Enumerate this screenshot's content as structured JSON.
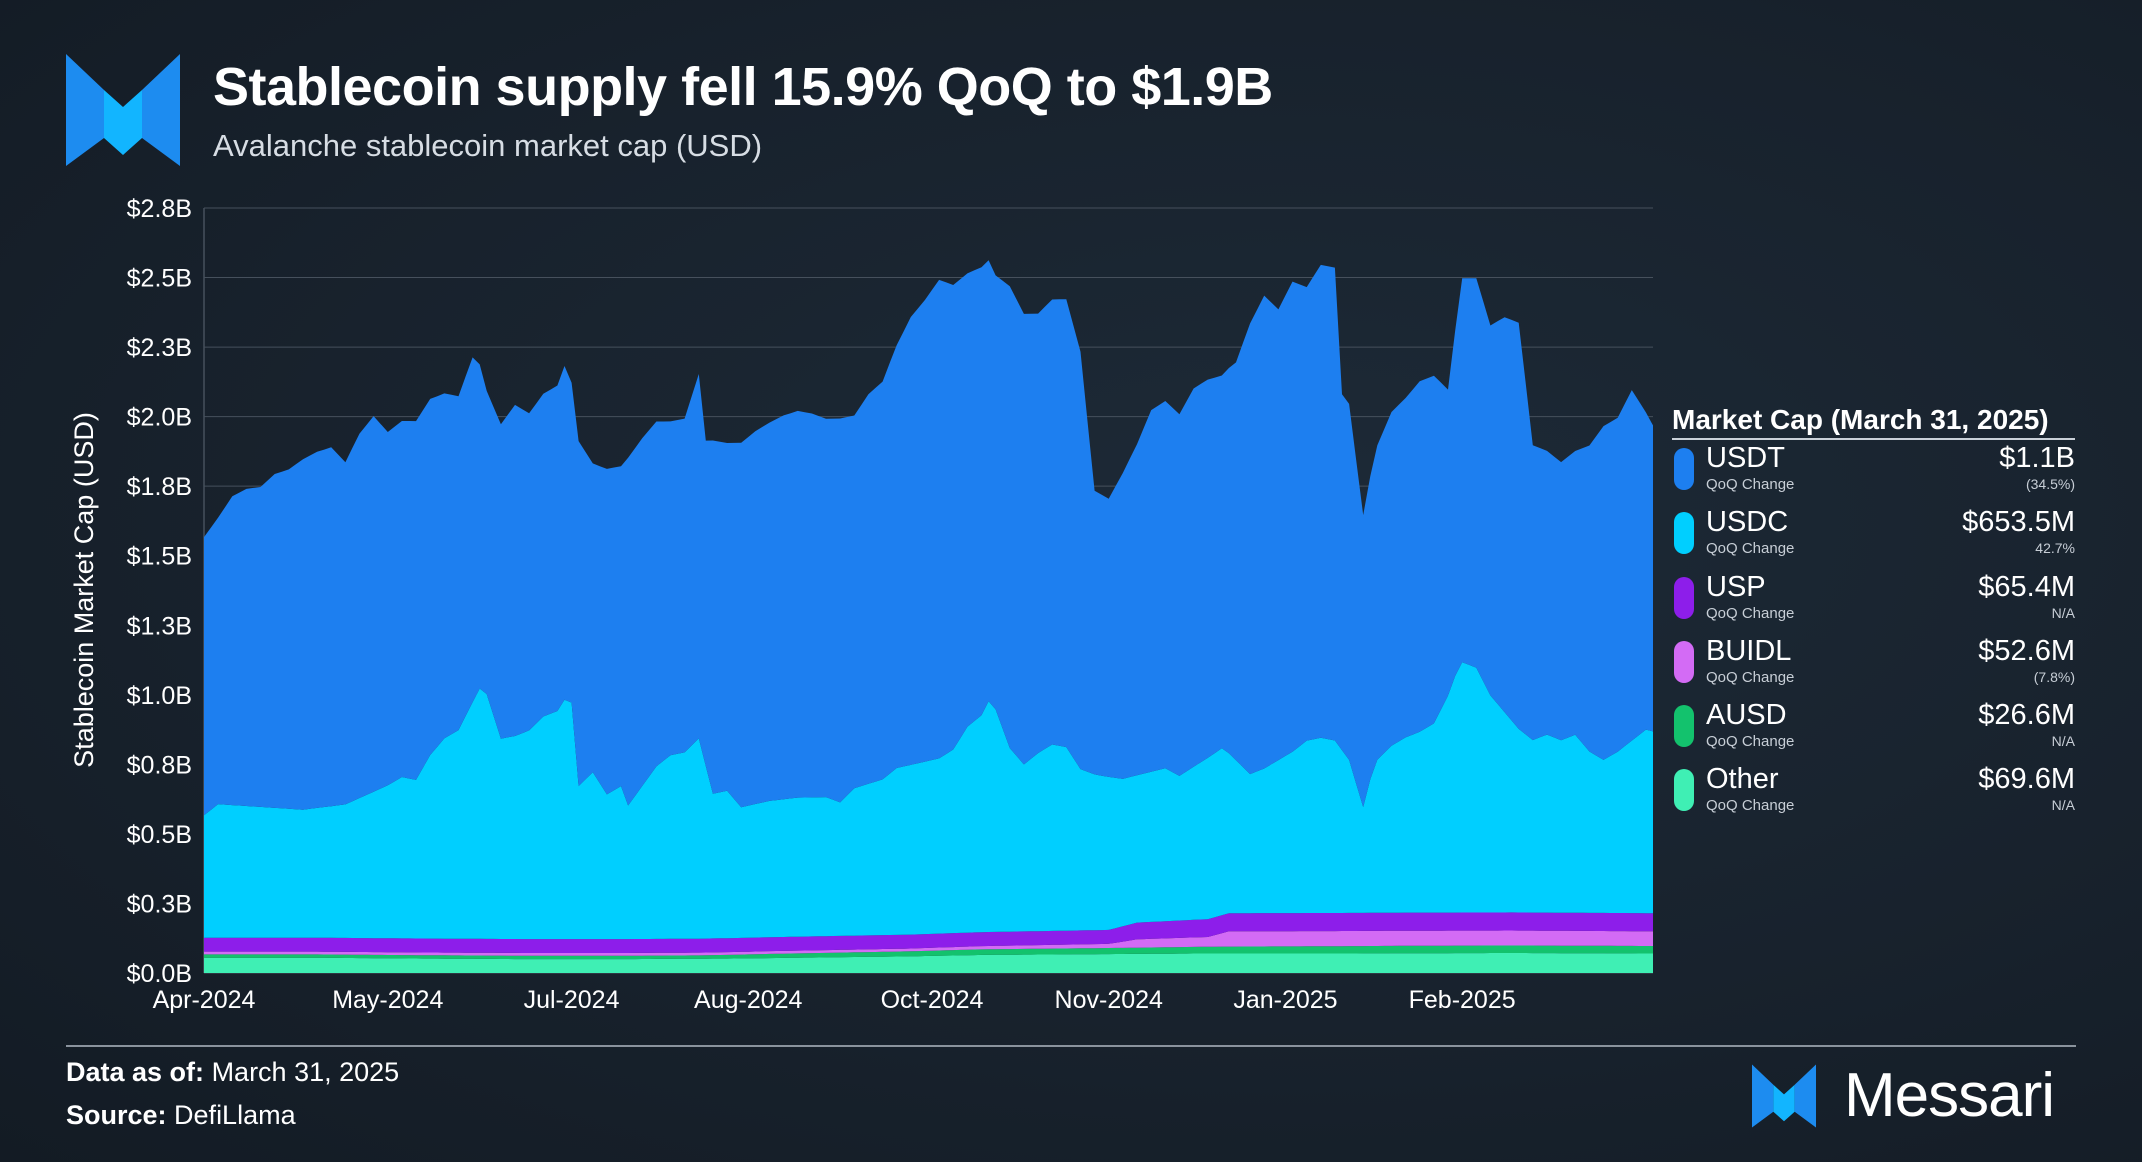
{
  "header": {
    "title": "Stablecoin supply fell 15.9% QoQ to $1.9B",
    "subtitle": "Avalanche stablecoin market cap (USD)"
  },
  "chart_data": {
    "type": "area",
    "stacked": true,
    "title": "Stablecoin supply fell 15.9% QoQ to $1.9B",
    "subtitle": "Avalanche stablecoin market cap (USD)",
    "xlabel": "",
    "ylabel": "Stablecoin Market Cap (USD)",
    "ylim": [
      0,
      2.75
    ],
    "yticks": [
      0,
      0.25,
      0.5,
      0.75,
      1.0,
      1.25,
      1.5,
      1.75,
      2.0,
      2.25,
      2.5,
      2.75
    ],
    "ytick_labels": [
      "$0.0B",
      "$0.3B",
      "$0.5B",
      "$0.8B",
      "$1.0B",
      "$1.3B",
      "$1.5B",
      "$1.8B",
      "$2.0B",
      "$2.3B",
      "$2.5B",
      "$2.8B"
    ],
    "x_tick_labels": [
      "Apr-2024",
      "May-2024",
      "Jul-2024",
      "Aug-2024",
      "Oct-2024",
      "Nov-2024",
      "Jan-2025",
      "Feb-2025"
    ],
    "x_tick_positions": [
      0,
      26,
      52,
      77,
      103,
      128,
      153,
      178
    ],
    "x_count": 206,
    "grid": true,
    "series": [
      {
        "name": "Other",
        "color": "#3fefb4",
        "values": [
          [
            0,
            0.055
          ],
          [
            15,
            0.055
          ],
          [
            30,
            0.052
          ],
          [
            45,
            0.05
          ],
          [
            60,
            0.05
          ],
          [
            75,
            0.052
          ],
          [
            100,
            0.06
          ],
          [
            110,
            0.065
          ],
          [
            140,
            0.07
          ],
          [
            160,
            0.07
          ],
          [
            185,
            0.072
          ],
          [
            205,
            0.07
          ]
        ]
      },
      {
        "name": "AUSD",
        "color": "#13c26d",
        "values": [
          [
            0,
            0.012
          ],
          [
            60,
            0.012
          ],
          [
            70,
            0.012
          ],
          [
            80,
            0.015
          ],
          [
            100,
            0.018
          ],
          [
            110,
            0.02
          ],
          [
            130,
            0.022
          ],
          [
            145,
            0.025
          ],
          [
            170,
            0.027
          ],
          [
            205,
            0.027
          ]
        ]
      },
      {
        "name": "BUIDL",
        "color": "#d36bf5",
        "values": [
          [
            0,
            0.01
          ],
          [
            100,
            0.01
          ],
          [
            128,
            0.015
          ],
          [
            132,
            0.03
          ],
          [
            142,
            0.035
          ],
          [
            145,
            0.055
          ],
          [
            205,
            0.053
          ]
        ]
      },
      {
        "name": "USP",
        "color": "#8d1eea",
        "values": [
          [
            0,
            0.05
          ],
          [
            100,
            0.05
          ],
          [
            128,
            0.05
          ],
          [
            132,
            0.06
          ],
          [
            145,
            0.065
          ],
          [
            205,
            0.065
          ]
        ]
      },
      {
        "name": "USDC",
        "color": "#00cfff",
        "values": [
          [
            0,
            0.44
          ],
          [
            2,
            0.48
          ],
          [
            8,
            0.47
          ],
          [
            14,
            0.46
          ],
          [
            20,
            0.48
          ],
          [
            26,
            0.55
          ],
          [
            28,
            0.58
          ],
          [
            30,
            0.57
          ],
          [
            32,
            0.66
          ],
          [
            34,
            0.72
          ],
          [
            36,
            0.75
          ],
          [
            38,
            0.85
          ],
          [
            39,
            0.9
          ],
          [
            40,
            0.88
          ],
          [
            42,
            0.72
          ],
          [
            44,
            0.73
          ],
          [
            46,
            0.75
          ],
          [
            48,
            0.8
          ],
          [
            50,
            0.82
          ],
          [
            51,
            0.86
          ],
          [
            52,
            0.85
          ],
          [
            53,
            0.55
          ],
          [
            55,
            0.6
          ],
          [
            57,
            0.52
          ],
          [
            59,
            0.55
          ],
          [
            60,
            0.48
          ],
          [
            62,
            0.55
          ],
          [
            64,
            0.62
          ],
          [
            66,
            0.66
          ],
          [
            68,
            0.67
          ],
          [
            70,
            0.72
          ],
          [
            71,
            0.62
          ],
          [
            72,
            0.52
          ],
          [
            74,
            0.53
          ],
          [
            76,
            0.47
          ],
          [
            78,
            0.48
          ],
          [
            80,
            0.49
          ],
          [
            84,
            0.5
          ],
          [
            88,
            0.5
          ],
          [
            90,
            0.48
          ],
          [
            92,
            0.53
          ],
          [
            96,
            0.56
          ],
          [
            98,
            0.6
          ],
          [
            100,
            0.61
          ],
          [
            102,
            0.62
          ],
          [
            104,
            0.63
          ],
          [
            106,
            0.66
          ],
          [
            108,
            0.74
          ],
          [
            110,
            0.78
          ],
          [
            111,
            0.83
          ],
          [
            112,
            0.8
          ],
          [
            114,
            0.66
          ],
          [
            116,
            0.6
          ],
          [
            118,
            0.64
          ],
          [
            120,
            0.67
          ],
          [
            122,
            0.66
          ],
          [
            124,
            0.58
          ],
          [
            126,
            0.56
          ],
          [
            128,
            0.55
          ],
          [
            130,
            0.53
          ],
          [
            132,
            0.53
          ],
          [
            134,
            0.54
          ],
          [
            136,
            0.55
          ],
          [
            138,
            0.52
          ],
          [
            140,
            0.55
          ],
          [
            142,
            0.58
          ],
          [
            144,
            0.6
          ],
          [
            146,
            0.55
          ],
          [
            148,
            0.5
          ],
          [
            150,
            0.52
          ],
          [
            152,
            0.55
          ],
          [
            154,
            0.58
          ],
          [
            156,
            0.62
          ],
          [
            158,
            0.63
          ],
          [
            160,
            0.62
          ],
          [
            162,
            0.55
          ],
          [
            164,
            0.38
          ],
          [
            165,
            0.48
          ],
          [
            166,
            0.55
          ],
          [
            168,
            0.6
          ],
          [
            170,
            0.63
          ],
          [
            172,
            0.65
          ],
          [
            174,
            0.68
          ],
          [
            176,
            0.78
          ],
          [
            177,
            0.85
          ],
          [
            178,
            0.9
          ],
          [
            180,
            0.88
          ],
          [
            182,
            0.78
          ],
          [
            184,
            0.72
          ],
          [
            186,
            0.66
          ],
          [
            188,
            0.62
          ],
          [
            190,
            0.64
          ],
          [
            192,
            0.62
          ],
          [
            194,
            0.64
          ],
          [
            196,
            0.58
          ],
          [
            198,
            0.55
          ],
          [
            200,
            0.58
          ],
          [
            202,
            0.62
          ],
          [
            204,
            0.66
          ],
          [
            205,
            0.6535
          ]
        ]
      },
      {
        "name": "USDT",
        "color": "#1d7ff0",
        "values": [
          [
            0,
            1.0
          ],
          [
            2,
            1.03
          ],
          [
            4,
            1.11
          ],
          [
            6,
            1.14
          ],
          [
            8,
            1.15
          ],
          [
            10,
            1.2
          ],
          [
            12,
            1.22
          ],
          [
            14,
            1.26
          ],
          [
            16,
            1.28
          ],
          [
            18,
            1.29
          ],
          [
            20,
            1.23
          ],
          [
            22,
            1.31
          ],
          [
            24,
            1.35
          ],
          [
            26,
            1.27
          ],
          [
            28,
            1.28
          ],
          [
            30,
            1.29
          ],
          [
            32,
            1.28
          ],
          [
            34,
            1.24
          ],
          [
            36,
            1.2
          ],
          [
            38,
            1.24
          ],
          [
            40,
            1.09
          ],
          [
            42,
            1.13
          ],
          [
            44,
            1.19
          ],
          [
            46,
            1.14
          ],
          [
            48,
            1.16
          ],
          [
            50,
            1.17
          ],
          [
            51,
            1.2
          ],
          [
            52,
            1.15
          ],
          [
            53,
            1.24
          ],
          [
            55,
            1.11
          ],
          [
            57,
            1.17
          ],
          [
            59,
            1.15
          ],
          [
            60,
            1.25
          ],
          [
            62,
            1.25
          ],
          [
            64,
            1.24
          ],
          [
            66,
            1.2
          ],
          [
            68,
            1.2
          ],
          [
            70,
            1.31
          ],
          [
            71,
            1.17
          ],
          [
            72,
            1.27
          ],
          [
            74,
            1.25
          ],
          [
            76,
            1.31
          ],
          [
            78,
            1.34
          ],
          [
            80,
            1.36
          ],
          [
            82,
            1.38
          ],
          [
            84,
            1.39
          ],
          [
            86,
            1.38
          ],
          [
            88,
            1.36
          ],
          [
            90,
            1.38
          ],
          [
            92,
            1.34
          ],
          [
            94,
            1.4
          ],
          [
            96,
            1.43
          ],
          [
            98,
            1.52
          ],
          [
            100,
            1.61
          ],
          [
            102,
            1.66
          ],
          [
            104,
            1.72
          ],
          [
            106,
            1.67
          ],
          [
            108,
            1.63
          ],
          [
            110,
            1.61
          ],
          [
            112,
            1.56
          ],
          [
            114,
            1.66
          ],
          [
            116,
            1.62
          ],
          [
            118,
            1.58
          ],
          [
            120,
            1.6
          ],
          [
            122,
            1.61
          ],
          [
            124,
            1.5
          ],
          [
            126,
            1.02
          ],
          [
            128,
            1.0
          ],
          [
            130,
            1.1
          ],
          [
            132,
            1.19
          ],
          [
            134,
            1.3
          ],
          [
            136,
            1.32
          ],
          [
            138,
            1.3
          ],
          [
            140,
            1.36
          ],
          [
            142,
            1.36
          ],
          [
            144,
            1.34
          ],
          [
            146,
            1.43
          ],
          [
            148,
            1.62
          ],
          [
            150,
            1.7
          ],
          [
            152,
            1.62
          ],
          [
            154,
            1.69
          ],
          [
            156,
            1.63
          ],
          [
            158,
            1.7
          ],
          [
            160,
            1.7
          ],
          [
            161,
            1.28
          ],
          [
            162,
            1.28
          ],
          [
            164,
            1.05
          ],
          [
            166,
            1.13
          ],
          [
            168,
            1.2
          ],
          [
            170,
            1.22
          ],
          [
            172,
            1.26
          ],
          [
            174,
            1.25
          ],
          [
            176,
            1.1
          ],
          [
            178,
            1.38
          ],
          [
            180,
            1.4
          ],
          [
            182,
            1.33
          ],
          [
            184,
            1.42
          ],
          [
            186,
            1.46
          ],
          [
            188,
            1.06
          ],
          [
            190,
            1.02
          ],
          [
            192,
            1.0
          ],
          [
            194,
            1.02
          ],
          [
            196,
            1.1
          ],
          [
            198,
            1.2
          ],
          [
            200,
            1.2
          ],
          [
            202,
            1.26
          ],
          [
            204,
            1.14
          ],
          [
            205,
            1.1
          ]
        ]
      }
    ],
    "legend": {
      "title": "Market Cap (March 31, 2025)",
      "position": "right",
      "items": [
        {
          "name": "USDT",
          "sub": "QoQ Change",
          "value": "$1.1B",
          "change": "(34.5%)",
          "color": "#1d7ff0"
        },
        {
          "name": "USDC",
          "sub": "QoQ Change",
          "value": "$653.5M",
          "change": "42.7%",
          "color": "#00cfff"
        },
        {
          "name": "USP",
          "sub": "QoQ Change",
          "value": "$65.4M",
          "change": "N/A",
          "color": "#8d1eea"
        },
        {
          "name": "BUIDL",
          "sub": "QoQ Change",
          "value": "$52.6M",
          "change": "(7.8%)",
          "color": "#d36bf5"
        },
        {
          "name": "AUSD",
          "sub": "QoQ Change",
          "value": "$26.6M",
          "change": "N/A",
          "color": "#13c26d"
        },
        {
          "name": "Other",
          "sub": "QoQ Change",
          "value": "$69.6M",
          "change": "N/A",
          "color": "#3fefb4"
        }
      ]
    }
  },
  "footer": {
    "data_as_of_label": "Data as of:",
    "data_as_of": "March 31, 2025",
    "source_label": "Source:",
    "source": "DefiLlama",
    "brand": "Messari"
  },
  "colors": {
    "accent": "#1d8cf0",
    "grid": "#46505c"
  }
}
